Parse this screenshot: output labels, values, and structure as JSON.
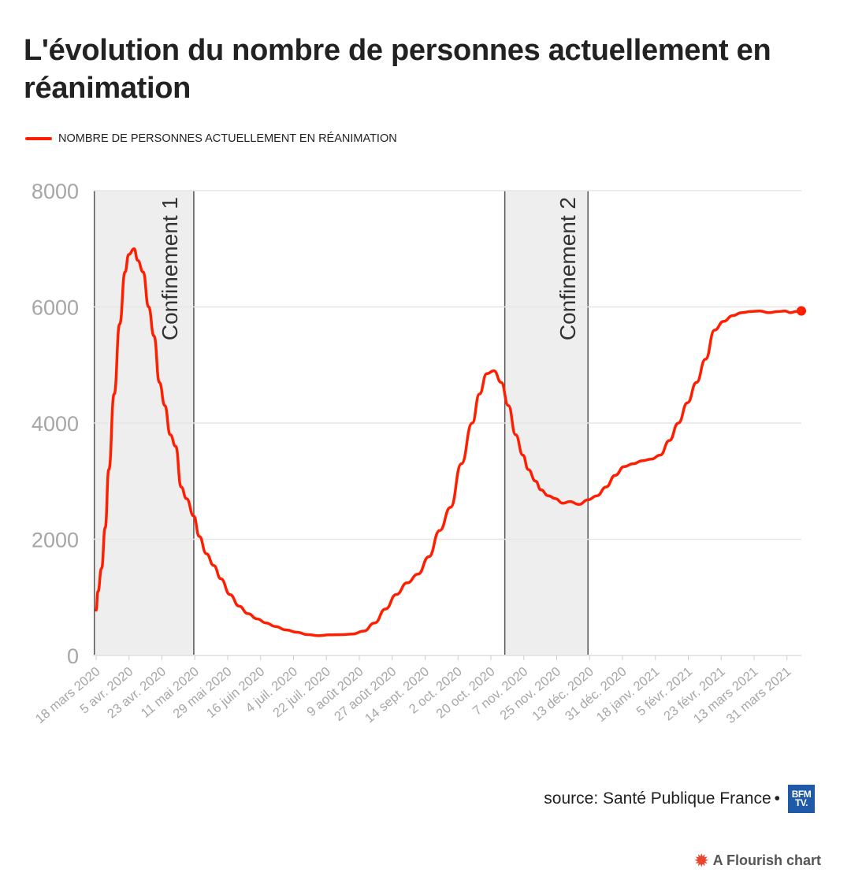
{
  "title": "L'évolution du nombre de personnes actuellement en réanimation",
  "legend_label": "NOMBRE DE PERSONNES ACTUELLEMENT EN RÉANIMATION",
  "source": "source: Santé Publique France",
  "source_sep": "•",
  "logo_text": [
    "BFM",
    "TV."
  ],
  "footer": "A Flourish chart",
  "footer_icon": "flourish-burst-icon",
  "colors": {
    "line": "#ff1e00",
    "band": "#eeeeee",
    "grid": "#e6e6e6",
    "axis_text": "#a6a6a6",
    "annotation_text": "#333333",
    "logo": "#1e5aa8"
  },
  "chart_data": {
    "type": "line",
    "title": "L'évolution du nombre de personnes actuellement en réanimation",
    "xlabel": "",
    "ylabel": "",
    "ylim": [
      0,
      8000
    ],
    "xlim": [
      "2020-03-18",
      "2021-04-12"
    ],
    "grid": true,
    "legend_position": "top-left",
    "y_ticks": [
      0,
      2000,
      4000,
      6000,
      8000
    ],
    "x_tick_labels": [
      "18 mars 2020",
      "5 avr. 2020",
      "23 avr. 2020",
      "11 mai 2020",
      "29 mai 2020",
      "16 juin 2020",
      "4 juil. 2020",
      "22 juil. 2020",
      "9 août 2020",
      "27 août 2020",
      "14 sept. 2020",
      "2 oct. 2020",
      "20 oct. 2020",
      "7 nov. 2020",
      "25 nov. 2020",
      "13 déc. 2020",
      "31 déc. 2020",
      "18 janv. 2021",
      "5 févr. 2021",
      "23 févr. 2021",
      "13 mars 2021",
      "31 mars 2021"
    ],
    "bands": [
      {
        "label": "Confinement 1",
        "start": "2020-03-17",
        "end": "2020-05-11"
      },
      {
        "label": "Confinement 2",
        "start": "2020-10-30",
        "end": "2020-12-15"
      }
    ],
    "series": [
      {
        "name": "NOMBRE DE PERSONNES ACTUELLEMENT EN RÉANIMATION",
        "x": [
          "2020-03-18",
          "2020-03-19",
          "2020-03-21",
          "2020-03-23",
          "2020-03-25",
          "2020-03-28",
          "2020-03-31",
          "2020-04-03",
          "2020-04-05",
          "2020-04-08",
          "2020-04-10",
          "2020-04-13",
          "2020-04-16",
          "2020-04-19",
          "2020-04-22",
          "2020-04-25",
          "2020-04-28",
          "2020-05-01",
          "2020-05-04",
          "2020-05-07",
          "2020-05-11",
          "2020-05-14",
          "2020-05-18",
          "2020-05-22",
          "2020-05-26",
          "2020-05-31",
          "2020-06-05",
          "2020-06-10",
          "2020-06-15",
          "2020-06-20",
          "2020-06-25",
          "2020-07-01",
          "2020-07-07",
          "2020-07-13",
          "2020-07-19",
          "2020-07-25",
          "2020-08-01",
          "2020-08-07",
          "2020-08-13",
          "2020-08-19",
          "2020-08-25",
          "2020-08-31",
          "2020-09-06",
          "2020-09-12",
          "2020-09-18",
          "2020-09-24",
          "2020-09-30",
          "2020-10-06",
          "2020-10-12",
          "2020-10-16",
          "2020-10-20",
          "2020-10-24",
          "2020-10-28",
          "2020-11-01",
          "2020-11-05",
          "2020-11-09",
          "2020-11-12",
          "2020-11-16",
          "2020-11-19",
          "2020-11-23",
          "2020-11-27",
          "2020-12-01",
          "2020-12-05",
          "2020-12-10",
          "2020-12-15",
          "2020-12-20",
          "2020-12-25",
          "2020-12-30",
          "2021-01-04",
          "2021-01-09",
          "2021-01-14",
          "2021-01-19",
          "2021-01-24",
          "2021-01-29",
          "2021-02-03",
          "2021-02-08",
          "2021-02-13",
          "2021-02-18",
          "2021-02-23",
          "2021-02-28",
          "2021-03-05",
          "2021-03-10",
          "2021-03-15",
          "2021-03-20",
          "2021-03-25",
          "2021-03-30",
          "2021-04-03",
          "2021-04-06",
          "2021-04-09",
          "2021-04-12"
        ],
        "y": [
          780,
          1100,
          1500,
          2200,
          3200,
          4500,
          5700,
          6600,
          6900,
          7000,
          6800,
          6600,
          6000,
          5500,
          4700,
          4300,
          3800,
          3600,
          2900,
          2700,
          2400,
          2050,
          1750,
          1550,
          1320,
          1050,
          850,
          720,
          630,
          560,
          500,
          440,
          400,
          360,
          340,
          355,
          360,
          370,
          420,
          560,
          800,
          1050,
          1250,
          1400,
          1700,
          2150,
          2550,
          3300,
          4000,
          4500,
          4850,
          4900,
          4700,
          4300,
          3800,
          3450,
          3200,
          3000,
          2850,
          2750,
          2700,
          2620,
          2650,
          2600,
          2680,
          2750,
          2900,
          3100,
          3250,
          3300,
          3350,
          3380,
          3450,
          3700,
          4000,
          4350,
          4700,
          5100,
          5600,
          5750,
          5850,
          5900,
          5920,
          5930,
          5900,
          5920,
          5930,
          5900,
          5920,
          5930
        ]
      }
    ]
  }
}
